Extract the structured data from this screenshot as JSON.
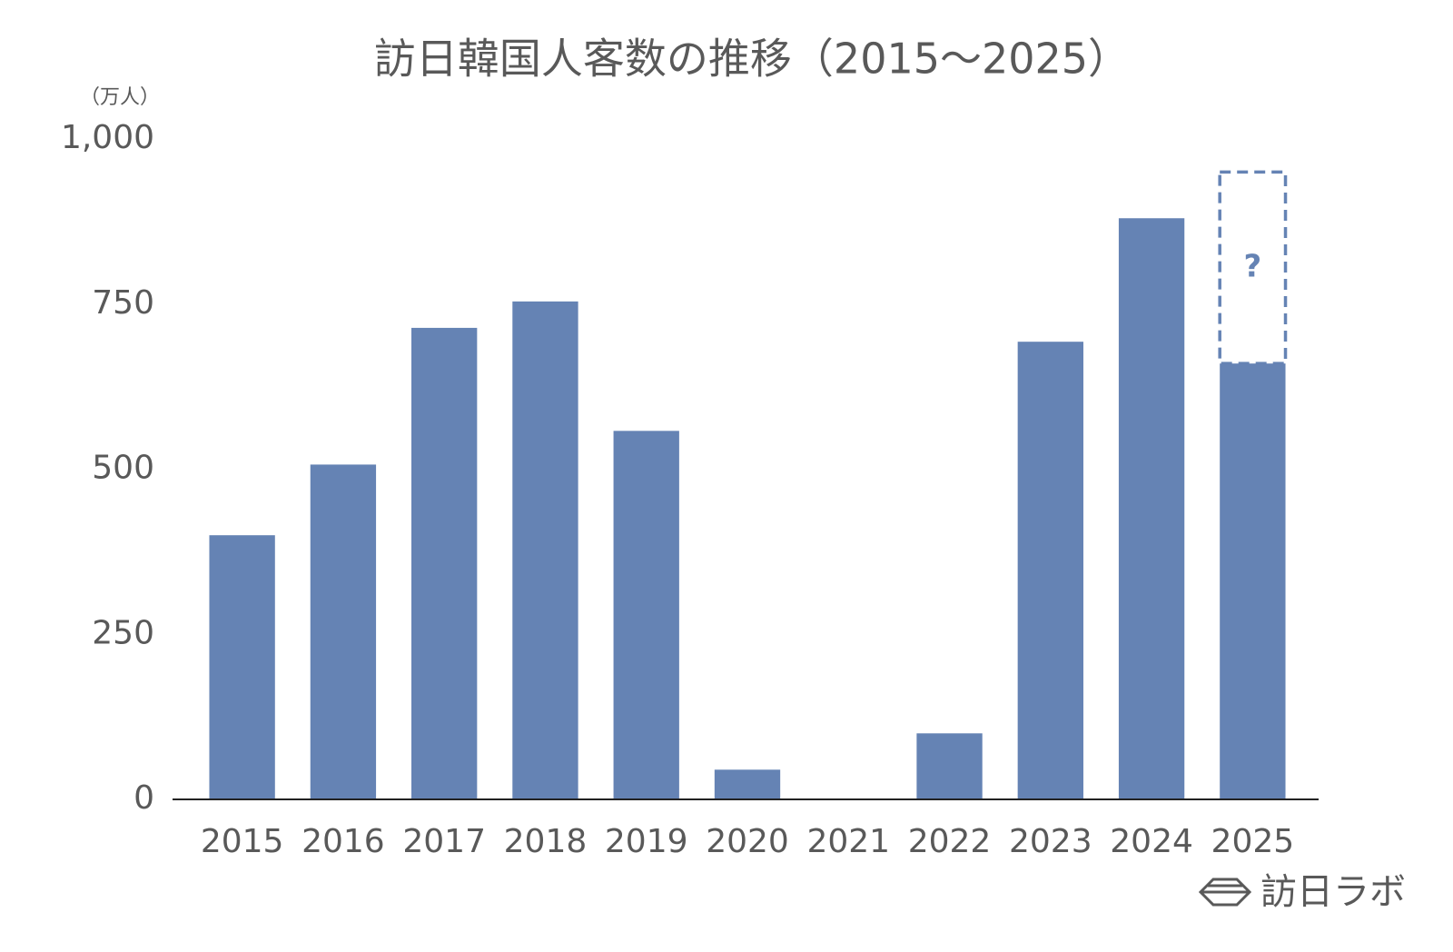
{
  "chart_data": {
    "type": "bar",
    "title": "訪日韓国人客数の推移（2015〜2025）",
    "y_label": "（万人）",
    "categories": [
      "2015",
      "2016",
      "2017",
      "2018",
      "2019",
      "2020",
      "2021",
      "2022",
      "2023",
      "2024",
      "2025"
    ],
    "values": [
      400,
      507,
      714,
      754,
      558,
      45,
      1,
      100,
      693,
      880,
      660
    ],
    "color": "#6583b4",
    "forecast_values": [
      null,
      null,
      null,
      null,
      null,
      null,
      null,
      null,
      null,
      null,
      290
    ],
    "forecast_label": "?",
    "ylim": [
      0,
      1000
    ],
    "yticks": [
      0,
      250,
      500,
      750,
      {
        "value": 1000,
        "label": "1,000"
      }
    ],
    "grid": false
  },
  "logo": "訪日ラボ"
}
